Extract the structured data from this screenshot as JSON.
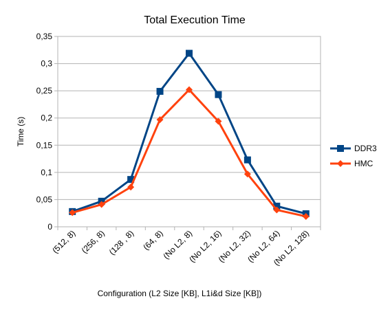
{
  "chart_data": {
    "type": "line",
    "title": "Total Execution Time",
    "xlabel": "Configuration (L2 Size [KB], L1i&d Size [KB])",
    "ylabel": "Time (s)",
    "categories": [
      "(512, 8)",
      "(256, 8)",
      "(128 , 8)",
      "(64, 8)",
      "(No L2, 8)",
      "(No L2, 16)",
      "(No L2, 32)",
      "(No L2, 64)",
      "(No L2, 128)"
    ],
    "ylim": [
      0,
      0.35
    ],
    "yticks": [
      0,
      0.05,
      0.1,
      0.15,
      0.2,
      0.25,
      0.3,
      0.35
    ],
    "ytick_labels": [
      "0",
      "0,05",
      "0,1",
      "0,15",
      "0,2",
      "0,25",
      "0,3",
      "0,35"
    ],
    "grid": true,
    "legend_position": "right",
    "series": [
      {
        "name": "DDR3",
        "color": "#004586",
        "marker": "square",
        "values": [
          0.028,
          0.047,
          0.087,
          0.249,
          0.319,
          0.243,
          0.123,
          0.038,
          0.024
        ]
      },
      {
        "name": "HMC",
        "color": "#ff420e",
        "marker": "diamond",
        "values": [
          0.026,
          0.041,
          0.073,
          0.197,
          0.252,
          0.194,
          0.097,
          0.031,
          0.019
        ]
      }
    ]
  }
}
